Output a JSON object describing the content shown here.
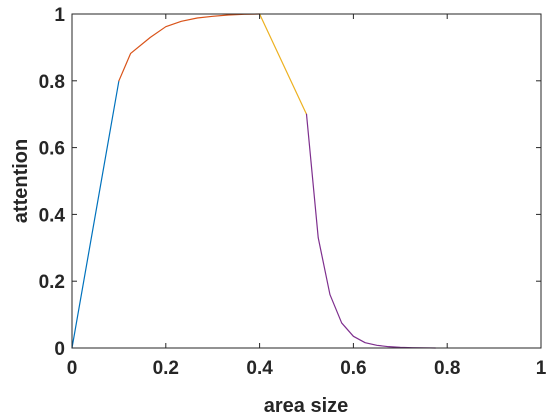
{
  "chart_data": {
    "type": "line",
    "title": "",
    "xlabel": "area size",
    "ylabel": "attention",
    "xlim": [
      0,
      1
    ],
    "ylim": [
      0,
      1
    ],
    "grid": false,
    "xticks": [
      "0",
      "0.2",
      "0.4",
      "0.6",
      "0.8",
      "1"
    ],
    "yticks": [
      "0",
      "0.2",
      "0.4",
      "0.6",
      "0.8",
      "1"
    ],
    "series": [
      {
        "color": "#0072BD",
        "x": [
          0,
          0.1
        ],
        "y": [
          0,
          0.8
        ]
      },
      {
        "color": "#D95319",
        "x": [
          0.1,
          0.125,
          0.167,
          0.2,
          0.233,
          0.267,
          0.3,
          0.333,
          0.367,
          0.4
        ],
        "y": [
          0.8,
          0.882,
          0.93,
          0.962,
          0.978,
          0.988,
          0.993,
          0.997,
          0.999,
          1.0
        ]
      },
      {
        "color": "#EDB120",
        "x": [
          0.4,
          0.5
        ],
        "y": [
          1.0,
          0.7
        ]
      },
      {
        "color": "#7E2F8E",
        "x": [
          0.5,
          0.525,
          0.55,
          0.575,
          0.6,
          0.625,
          0.65,
          0.675,
          0.7,
          0.725,
          0.75,
          0.775
        ],
        "y": [
          0.7,
          0.33,
          0.16,
          0.075,
          0.035,
          0.016,
          0.008,
          0.004,
          0.002,
          0.001,
          0.0005,
          0.0
        ]
      }
    ]
  }
}
